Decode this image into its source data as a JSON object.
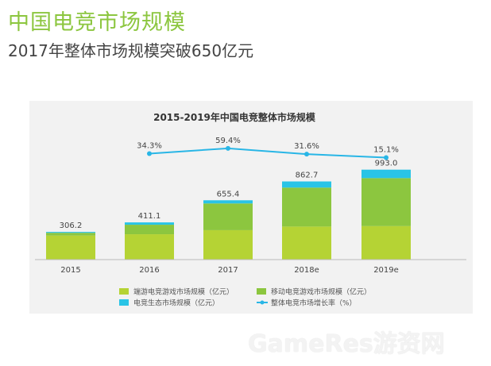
{
  "header": {
    "title": "中国电竞市场规模",
    "subtitle": "2017年整体市场规模突破650亿元"
  },
  "watermark": "GameRes游资网",
  "colors": {
    "title": "#8cc63f",
    "client_series": "#b5d334",
    "mobile_series": "#8cc63f",
    "ecosystem_series": "#29c4e6",
    "growth_line": "#29b6e6",
    "panel_bg": "#f2f2f2"
  },
  "chart_data": {
    "type": "bar",
    "stacked": true,
    "title": "2015-2019年中国电竞整体市场规模",
    "categories": [
      "2015",
      "2016",
      "2017",
      "2018e",
      "2019e"
    ],
    "series": [
      {
        "name": "端游电竞游戏市场规模（亿元）",
        "values": [
          265,
          280,
          325,
          365,
          370
        ]
      },
      {
        "name": "移动电竞游戏市场规模（亿元）",
        "values": [
          31,
          105,
          295,
          430,
          530
        ]
      },
      {
        "name": "电竞生态市场规模（亿元）",
        "values": [
          10,
          26,
          35,
          68,
          93
        ]
      }
    ],
    "totals": [
      "306.2",
      "411.1",
      "655.4",
      "862.7",
      "993.0"
    ],
    "line": {
      "name": "整体电竞市场增长率（%）",
      "categories": [
        "2016",
        "2017",
        "2018e",
        "2019e"
      ],
      "values": [
        34.3,
        59.4,
        31.6,
        15.1
      ],
      "labels": [
        "34.3%",
        "59.4%",
        "31.6%",
        "15.1%"
      ]
    },
    "ylim": [
      0,
      1050
    ],
    "legend_position": "bottom",
    "grid": false
  }
}
